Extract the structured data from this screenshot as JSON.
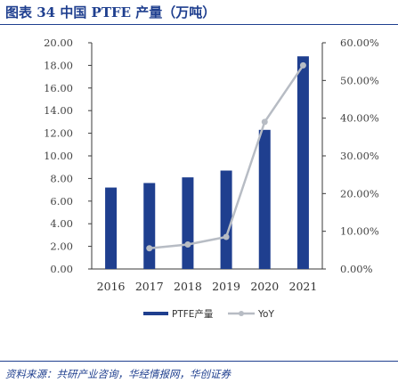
{
  "figure": {
    "title": "图表 34   中国 PTFE 产量（万吨）",
    "source": "资料来源：共研产业咨询，华经情报网，华创证券"
  },
  "chart_data": {
    "type": "bar",
    "categories": [
      "2016",
      "2017",
      "2018",
      "2019",
      "2020",
      "2021"
    ],
    "series": [
      {
        "name": "PTFE产量",
        "type": "bar",
        "axis": "left",
        "color": "#1f3f8f",
        "values": [
          7.2,
          7.6,
          8.1,
          8.7,
          12.3,
          18.8
        ]
      },
      {
        "name": "YoY",
        "type": "line",
        "axis": "right",
        "color": "#b7bcc4",
        "values": [
          null,
          5.5,
          6.5,
          8.5,
          39.0,
          54.0
        ]
      }
    ],
    "y_left": {
      "ylim": [
        0,
        20
      ],
      "ticks": [
        "0.00",
        "2.00",
        "4.00",
        "6.00",
        "8.00",
        "10.00",
        "12.00",
        "14.00",
        "16.00",
        "18.00",
        "20.00"
      ]
    },
    "y_right": {
      "ylim": [
        0,
        60
      ],
      "ticks": [
        "0.00%",
        "10.00%",
        "20.00%",
        "30.00%",
        "40.00%",
        "50.00%",
        "60.00%"
      ]
    },
    "legend": {
      "position": "bottom",
      "items": [
        "PTFE产量",
        "YoY"
      ]
    },
    "grid": false
  }
}
